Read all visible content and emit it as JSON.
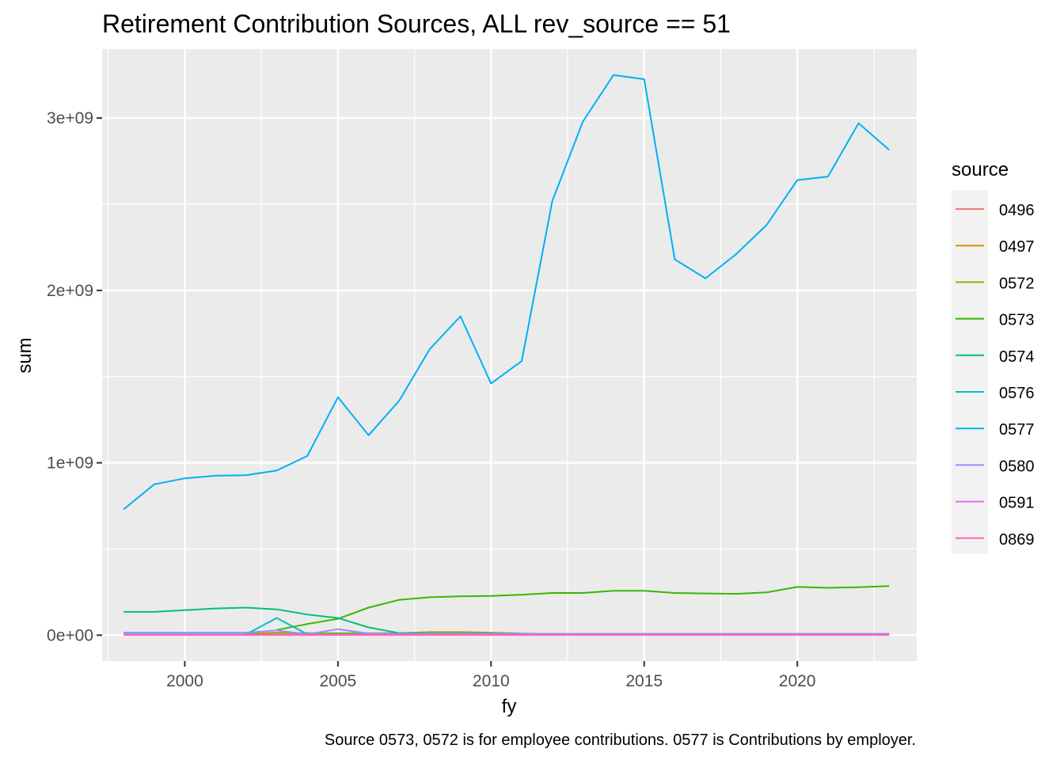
{
  "chart_data": {
    "type": "line",
    "title": "Retirement Contribution Sources, ALL rev_source == 51",
    "xlabel": "fy",
    "ylabel": "sum",
    "caption": "Source 0573, 0572 is for employee contributions. 0577 is Contributions by employer.",
    "xlim": [
      1997.3,
      2023.9
    ],
    "ylim": [
      -150000000,
      3400000000
    ],
    "x_ticks": [
      2000,
      2005,
      2010,
      2015,
      2020
    ],
    "x_tick_labels": [
      "2000",
      "2005",
      "2010",
      "2015",
      "2020"
    ],
    "x_minor_ticks": [
      1997.5,
      2002.5,
      2007.5,
      2012.5,
      2017.5,
      2022.5
    ],
    "y_ticks": [
      0,
      1000000000,
      2000000000,
      3000000000
    ],
    "y_tick_labels": [
      "0e+00",
      "1e+09",
      "2e+09",
      "3e+09"
    ],
    "y_minor_ticks": [
      500000000,
      1500000000,
      2500000000
    ],
    "grid": true,
    "legend": {
      "title": "source",
      "position": "right"
    },
    "series": [
      {
        "name": "0496",
        "color": "#F8766D",
        "x": [
          1998,
          1999,
          2000,
          2001,
          2002,
          2003,
          2004,
          2005,
          2006,
          2007,
          2008,
          2009,
          2010,
          2011,
          2012,
          2013,
          2014,
          2015,
          2016,
          2017,
          2018,
          2019,
          2020,
          2021,
          2022,
          2023
        ],
        "values": [
          2000000,
          2000000,
          2000000,
          2000000,
          2000000,
          2000000,
          2000000,
          2000000,
          2000000,
          2000000,
          2000000,
          2000000,
          2000000,
          2000000,
          2000000,
          2000000,
          2000000,
          2000000,
          2000000,
          2000000,
          2000000,
          2000000,
          2000000,
          2000000,
          2000000,
          2000000
        ]
      },
      {
        "name": "0497",
        "color": "#D89000",
        "x": [
          2002,
          2003,
          2004,
          2005,
          2006,
          2007,
          2008,
          2009,
          2010,
          2011,
          2012,
          2013
        ],
        "values": [
          5000000,
          5000000,
          5000000,
          5000000,
          5000000,
          5000000,
          5000000,
          5000000,
          5000000,
          3000000,
          2000000,
          2000000
        ]
      },
      {
        "name": "0572",
        "color": "#A3A500",
        "x": [
          2002,
          2003,
          2004,
          2005,
          2006,
          2007,
          2008,
          2009,
          2010,
          2011,
          2012,
          2013,
          2014,
          2015,
          2016,
          2017,
          2018,
          2019,
          2020,
          2021,
          2022,
          2023
        ],
        "values": [
          10000000,
          15000000,
          12000000,
          12000000,
          12000000,
          12000000,
          18000000,
          18000000,
          15000000,
          10000000,
          8000000,
          8000000,
          8000000,
          8000000,
          8000000,
          8000000,
          8000000,
          8000000,
          8000000,
          8000000,
          8000000,
          8000000
        ]
      },
      {
        "name": "0573",
        "color": "#39B600",
        "x": [
          2003,
          2004,
          2005,
          2006,
          2007,
          2008,
          2009,
          2010,
          2011,
          2012,
          2013,
          2014,
          2015,
          2016,
          2017,
          2018,
          2019,
          2020,
          2021,
          2022,
          2023
        ],
        "values": [
          30000000,
          65000000,
          95000000,
          160000000,
          205000000,
          220000000,
          225000000,
          228000000,
          235000000,
          245000000,
          245000000,
          258000000,
          258000000,
          245000000,
          242000000,
          240000000,
          248000000,
          280000000,
          275000000,
          278000000,
          285000000
        ]
      },
      {
        "name": "0574",
        "color": "#00BF7D",
        "x": [
          1998,
          1999,
          2000,
          2001,
          2002,
          2003,
          2004,
          2005,
          2006,
          2007,
          2008,
          2009,
          2010,
          2011,
          2012,
          2013,
          2014,
          2015,
          2016,
          2017,
          2018,
          2019,
          2020,
          2021,
          2022,
          2023
        ],
        "values": [
          135000000,
          135000000,
          145000000,
          155000000,
          160000000,
          150000000,
          120000000,
          100000000,
          45000000,
          12000000,
          10000000,
          10000000,
          10000000,
          8000000,
          5000000,
          5000000,
          5000000,
          5000000,
          5000000,
          5000000,
          5000000,
          5000000,
          5000000,
          5000000,
          5000000,
          5000000
        ]
      },
      {
        "name": "0576",
        "color": "#00BFC4",
        "x": [
          1998,
          1999,
          2000,
          2001,
          2002,
          2003,
          2004,
          2005,
          2006,
          2007,
          2008,
          2009,
          2010,
          2011,
          2012,
          2013,
          2014,
          2015,
          2016,
          2017,
          2018,
          2019,
          2020,
          2021,
          2022,
          2023
        ],
        "values": [
          5000000,
          5000000,
          5000000,
          5000000,
          5000000,
          100000000,
          5000000,
          5000000,
          5000000,
          5000000,
          5000000,
          5000000,
          5000000,
          5000000,
          5000000,
          5000000,
          5000000,
          5000000,
          5000000,
          5000000,
          5000000,
          5000000,
          5000000,
          5000000,
          5000000,
          5000000
        ]
      },
      {
        "name": "0577",
        "color": "#00B0F6",
        "x": [
          1998,
          1999,
          2000,
          2001,
          2002,
          2003,
          2004,
          2005,
          2006,
          2007,
          2008,
          2009,
          2010,
          2011,
          2012,
          2013,
          2014,
          2015,
          2016,
          2017,
          2018,
          2019,
          2020,
          2021,
          2022,
          2023
        ],
        "values": [
          730000000,
          875000000,
          910000000,
          925000000,
          928000000,
          955000000,
          1040000000,
          1380000000,
          1160000000,
          1360000000,
          1660000000,
          1850000000,
          1460000000,
          1590000000,
          2520000000,
          2980000000,
          3250000000,
          3225000000,
          2180000000,
          2070000000,
          2210000000,
          2380000000,
          2640000000,
          2660000000,
          2970000000,
          2815000000
        ]
      },
      {
        "name": "0580",
        "color": "#9590FF",
        "x": [
          1998,
          1999,
          2000,
          2001,
          2002,
          2003,
          2004,
          2005,
          2006,
          2007,
          2008,
          2009,
          2010,
          2011,
          2012,
          2013,
          2014,
          2015,
          2016,
          2017,
          2018,
          2019,
          2020,
          2021,
          2022,
          2023
        ],
        "values": [
          15000000,
          15000000,
          15000000,
          15000000,
          15000000,
          28000000,
          5000000,
          35000000,
          10000000,
          8000000,
          8000000,
          8000000,
          8000000,
          8000000,
          8000000,
          8000000,
          8000000,
          8000000,
          8000000,
          8000000,
          8000000,
          8000000,
          8000000,
          8000000,
          8000000,
          8000000
        ]
      },
      {
        "name": "0591",
        "color": "#E76BF3",
        "x": [
          1998,
          1999,
          2000,
          2001,
          2002,
          2003,
          2004,
          2005,
          2006,
          2007,
          2008,
          2009,
          2010,
          2011,
          2012,
          2013,
          2014,
          2015,
          2016,
          2017,
          2018,
          2019,
          2020,
          2021,
          2022,
          2023
        ],
        "values": [
          3000000,
          3000000,
          3000000,
          3000000,
          3000000,
          3000000,
          3000000,
          3000000,
          3000000,
          3000000,
          3000000,
          3000000,
          3000000,
          3000000,
          3000000,
          3000000,
          3000000,
          3000000,
          3000000,
          3000000,
          3000000,
          3000000,
          3000000,
          3000000,
          3000000,
          3000000
        ]
      },
      {
        "name": "0869",
        "color": "#FF62BC",
        "x": [
          1998,
          1999,
          2000,
          2001,
          2002,
          2003,
          2004,
          2005,
          2006,
          2007,
          2008,
          2009,
          2010,
          2011,
          2012,
          2013,
          2014,
          2015,
          2016,
          2017,
          2018,
          2019,
          2020,
          2021,
          2022,
          2023
        ],
        "values": [
          1000000,
          1000000,
          1000000,
          1000000,
          1000000,
          1000000,
          1000000,
          1000000,
          1000000,
          1000000,
          1000000,
          1000000,
          1000000,
          1000000,
          1000000,
          1000000,
          1000000,
          1000000,
          1000000,
          1000000,
          1000000,
          1000000,
          1000000,
          1000000,
          1000000,
          1000000
        ]
      }
    ]
  }
}
